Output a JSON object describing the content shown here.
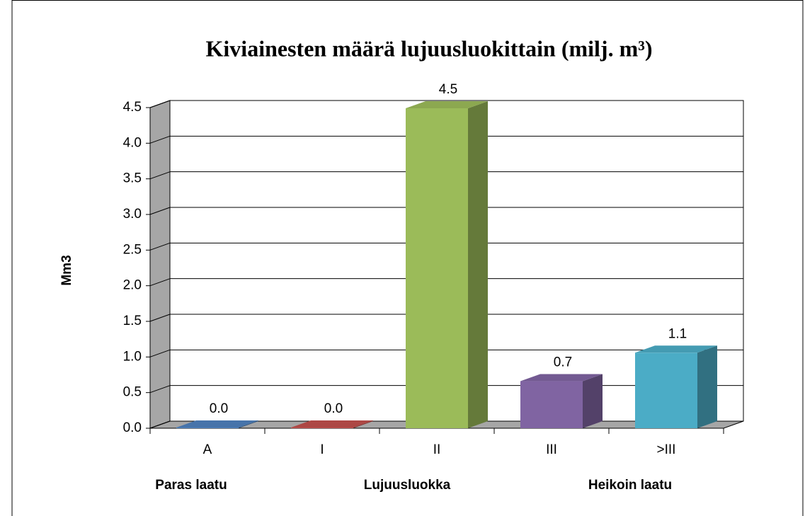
{
  "chart_data": {
    "type": "bar3d",
    "title": "Kiviainesten määrä lujuusluokittain (milj. m³)",
    "y_label": "Mm3",
    "categories": [
      "A",
      "I",
      "II",
      "III",
      ">III"
    ],
    "values": [
      0.01,
      0.01,
      4.49,
      0.66,
      1.06
    ],
    "value_labels": [
      "0.0",
      "0.0",
      "4.5",
      "0.7",
      "1.1"
    ],
    "colors": [
      "#4f81bd",
      "#c0504d",
      "#9bbb59",
      "#8064a2",
      "#4bacc6"
    ],
    "ylim": [
      0,
      4.5
    ],
    "yticks": [
      {
        "value": 0,
        "label": "0.0"
      },
      0.5,
      {
        "value": 1,
        "label": "1.0"
      },
      1.5,
      {
        "value": 2,
        "label": "2.0"
      },
      2.5,
      {
        "value": 3,
        "label": "3.0"
      },
      3.5,
      {
        "value": 4,
        "label": "4.0"
      },
      4.5
    ],
    "grid": true,
    "annotations": [
      "Paras laatu",
      "Lujuusluokka",
      "Heikoin laatu"
    ]
  }
}
